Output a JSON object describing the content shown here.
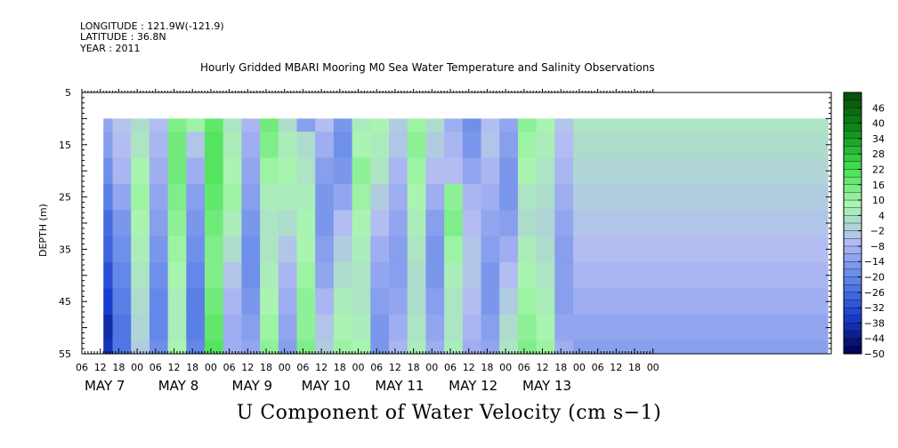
{
  "header": {
    "longitude": "LONGITUDE : 121.9W(-121.9)",
    "latitude": "LATITUDE : 36.8N",
    "year": "YEAR : 2011",
    "title": "Hourly Gridded MBARI Mooring M0 Sea Water Temperature and Salinity Observations"
  },
  "chart_data": {
    "type": "heatmap",
    "title": "Hourly Gridded MBARI Mooring M0 Sea Water Temperature and Salinity Observations",
    "xlabel": "",
    "ylabel": "DEPTH (m)",
    "variable_title": "U Component of Water Velocity (cm s−1)",
    "x_hour_ticks": [
      "06",
      "12",
      "18",
      "00",
      "06",
      "12",
      "18",
      "00",
      "06",
      "12",
      "18",
      "00",
      "06",
      "12",
      "18",
      "00",
      "06",
      "12",
      "18",
      "00",
      "06",
      "12",
      "18",
      "00",
      "06",
      "12",
      "18",
      "00",
      "06",
      "12",
      "18",
      "00"
    ],
    "x_day_labels": [
      "MAY  7",
      "MAY  8",
      "MAY  9",
      "MAY 10",
      "MAY 11",
      "MAY 12",
      "MAY 13"
    ],
    "y_ticks": [
      5,
      15,
      25,
      35,
      45,
      55
    ],
    "ylim": [
      5,
      55
    ],
    "colorbar_ticks": [
      46,
      40,
      34,
      28,
      22,
      16,
      10,
      4,
      -2,
      -8,
      -14,
      -20,
      -26,
      -32,
      -38,
      -44,
      -50
    ],
    "colorbar_range": [
      -50,
      52
    ],
    "depth_levels": [
      10,
      15,
      20,
      25,
      30,
      35,
      40,
      45,
      50,
      55
    ],
    "time_hours": [
      "May 7 13:00",
      "May 7 18:00",
      "May 8 00:00",
      "May 8 06:00",
      "May 8 12:00",
      "May 8 18:00",
      "May 9 00:00",
      "May 9 06:00",
      "May 9 12:00",
      "May 9 18:00",
      "May 10 00:00",
      "May 10 06:00",
      "May 10 12:00",
      "May 10 18:00",
      "May 11 00:00",
      "May 11 06:00",
      "May 11 12:00",
      "May 11 18:00",
      "May 12 00:00",
      "May 12 06:00",
      "May 12 12:00",
      "May 12 18:00",
      "May 13 00:00",
      "May 13 06:00",
      "May 13 12:00",
      "May 13 18:00",
      "May 14 00:00"
    ],
    "u_velocity": [
      [
        -12,
        -4,
        2,
        -6,
        14,
        10,
        18,
        4,
        -8,
        16,
        2,
        -14,
        -6,
        -16,
        6,
        8,
        -2,
        10,
        2,
        -10,
        -18,
        -6,
        -12,
        12,
        8,
        -4,
        4
      ],
      [
        -14,
        -6,
        4,
        -8,
        16,
        -4,
        20,
        6,
        -10,
        14,
        6,
        2,
        -10,
        -18,
        8,
        6,
        -4,
        12,
        -2,
        -8,
        -16,
        -4,
        -14,
        10,
        6,
        -6,
        2
      ],
      [
        -18,
        -8,
        8,
        -10,
        16,
        -10,
        20,
        8,
        -12,
        10,
        8,
        4,
        -14,
        -16,
        12,
        4,
        -8,
        10,
        -6,
        -6,
        -12,
        -8,
        -16,
        8,
        4,
        -8,
        0
      ],
      [
        -22,
        -12,
        10,
        -12,
        14,
        -14,
        18,
        10,
        -14,
        6,
        6,
        6,
        -16,
        -12,
        10,
        -2,
        -10,
        8,
        -10,
        12,
        -8,
        -10,
        -16,
        4,
        2,
        -10,
        -2
      ],
      [
        -26,
        -16,
        8,
        -14,
        12,
        -16,
        16,
        6,
        -16,
        4,
        2,
        8,
        -16,
        -6,
        8,
        -6,
        -12,
        6,
        -14,
        14,
        -6,
        -12,
        -14,
        2,
        0,
        -12,
        -4
      ],
      [
        -28,
        -18,
        6,
        -16,
        10,
        -18,
        14,
        2,
        -18,
        4,
        -4,
        8,
        -14,
        -2,
        6,
        -10,
        -14,
        4,
        -16,
        10,
        -4,
        -14,
        -10,
        6,
        2,
        -14,
        -6
      ],
      [
        -32,
        -20,
        4,
        -18,
        8,
        -20,
        14,
        -4,
        -18,
        6,
        -8,
        10,
        -12,
        2,
        4,
        -12,
        -14,
        2,
        -16,
        6,
        -4,
        -16,
        -6,
        8,
        4,
        -14,
        -8
      ],
      [
        -36,
        -22,
        2,
        -20,
        6,
        -22,
        16,
        -8,
        -16,
        8,
        -10,
        12,
        -8,
        6,
        4,
        -14,
        -12,
        2,
        -14,
        4,
        -6,
        -16,
        -2,
        10,
        6,
        -14,
        -10
      ],
      [
        -40,
        -24,
        0,
        -20,
        6,
        -22,
        18,
        -10,
        -14,
        10,
        -12,
        12,
        -4,
        8,
        6,
        -16,
        -10,
        4,
        -12,
        4,
        -8,
        -14,
        2,
        12,
        8,
        -12,
        -12
      ],
      [
        -38,
        -24,
        -2,
        -18,
        8,
        -20,
        20,
        -10,
        -12,
        12,
        -14,
        14,
        -2,
        10,
        8,
        -16,
        -8,
        6,
        -10,
        6,
        -10,
        -12,
        4,
        14,
        10,
        -10,
        -14
      ]
    ]
  },
  "colors": {
    "plot_background": "#ffffff",
    "scale_stops": [
      "#00004d",
      "#1a3fd1",
      "#5f85e8",
      "#b3bcf3",
      "#a9f5b0",
      "#3fe04c",
      "#0f8a1b",
      "#064a08"
    ]
  }
}
